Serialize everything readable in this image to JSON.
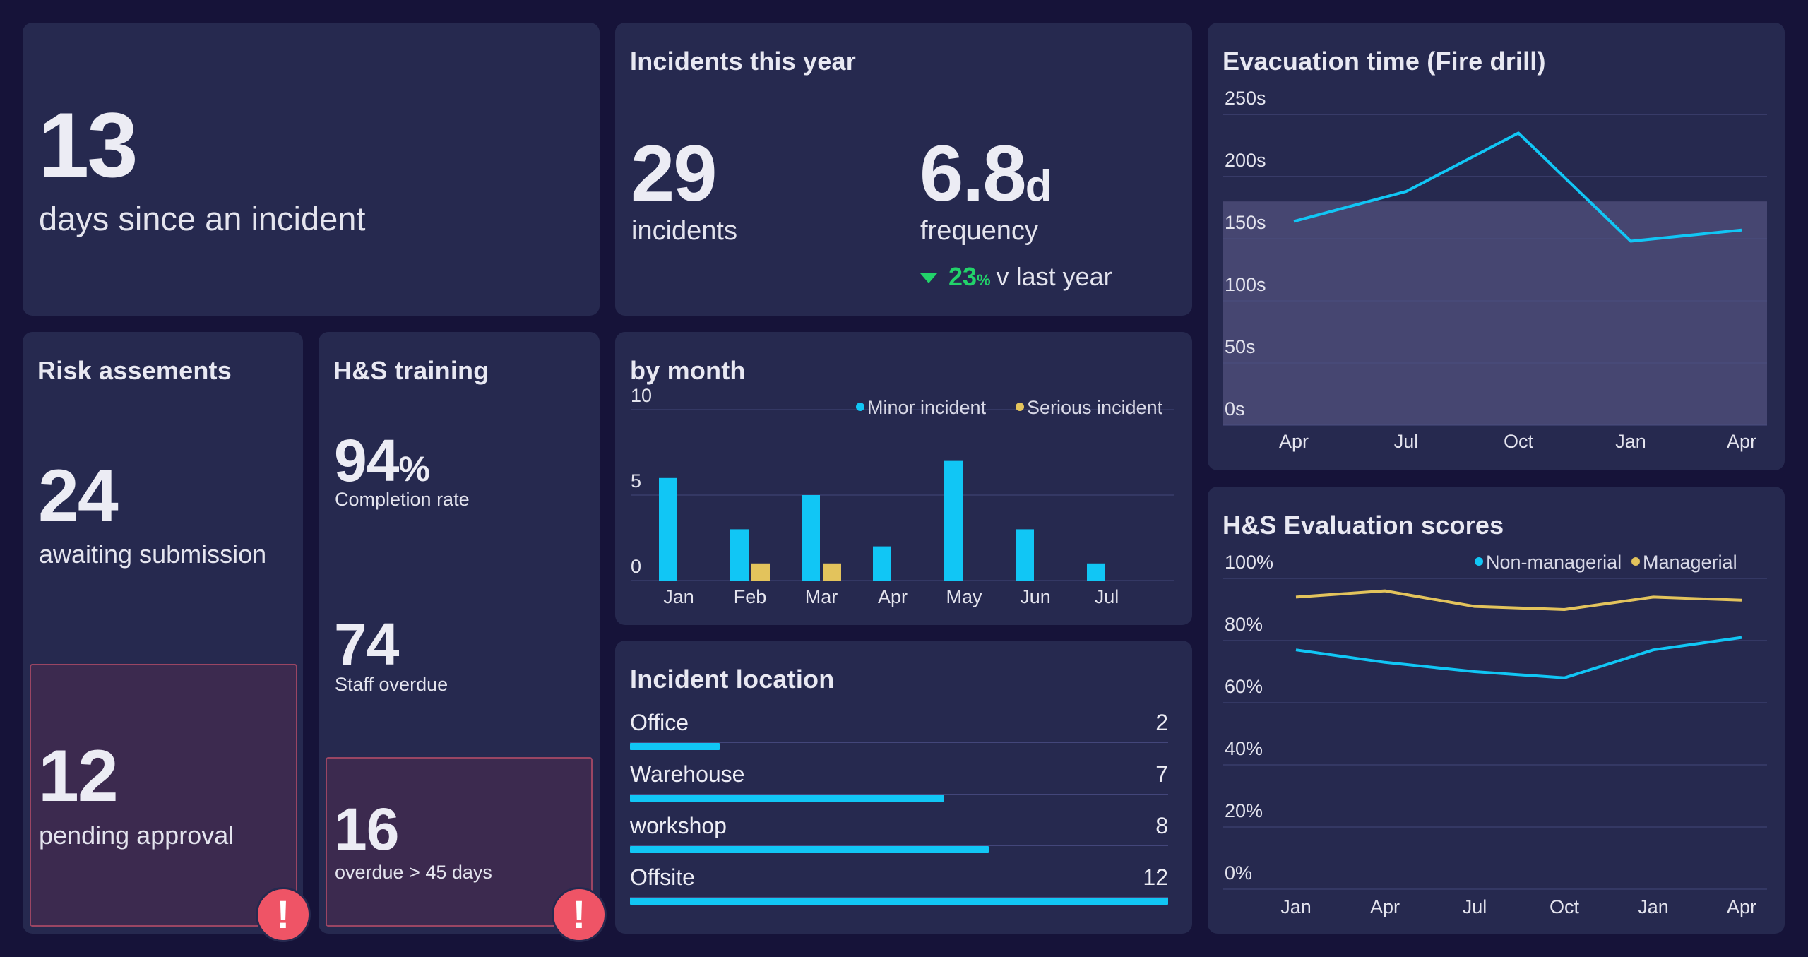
{
  "days_card": {
    "value": "13",
    "label": "days since an incident"
  },
  "incidents_card": {
    "title": "Incidents this year",
    "count": "29",
    "count_label": "incidents",
    "frequency_value": "6.8",
    "frequency_unit": "d",
    "frequency_label": "frequency",
    "change_value": "23",
    "change_unit": "%",
    "change_label": "v last year",
    "change_color": "#22d36a"
  },
  "risk_card": {
    "title": "Risk assements",
    "awaiting_value": "24",
    "awaiting_label": "awaiting submission",
    "pending_value": "12",
    "pending_label": "pending approval",
    "alert_icon": "exclamation-icon",
    "alert_symbol": "!"
  },
  "training_card": {
    "title": "H&S training",
    "completion_value": "94",
    "completion_unit": "%",
    "completion_label": "Completion rate",
    "overdue_value": "74",
    "overdue_label": "Staff overdue",
    "long_overdue_value": "16",
    "long_overdue_label": "overdue > 45 days",
    "alert_icon": "exclamation-icon",
    "alert_symbol": "!"
  },
  "month_card": {
    "title": "by month",
    "chart_data": {
      "type": "bar",
      "categories": [
        "Jan",
        "Feb",
        "Mar",
        "Apr",
        "May",
        "Jun",
        "Jul"
      ],
      "series": [
        {
          "name": "Minor incident",
          "values": [
            6,
            3,
            5,
            2,
            7,
            3,
            1
          ],
          "color": "#11c6f5"
        },
        {
          "name": "Serious incident",
          "values": [
            0,
            1,
            1,
            0,
            0,
            0,
            0
          ],
          "color": "#e3c35c"
        }
      ],
      "yticks": [
        "0",
        "5",
        "10"
      ],
      "ylim": [
        0,
        10
      ],
      "legend": "top-right"
    }
  },
  "location_card": {
    "title": "Incident location",
    "max": 12,
    "items": [
      {
        "name": "Office",
        "value": "2"
      },
      {
        "name": "Warehouse",
        "value": "7"
      },
      {
        "name": "workshop",
        "value": "8"
      },
      {
        "name": "Offsite",
        "value": "12"
      }
    ]
  },
  "evac_card": {
    "title": "Evacuation time (Fire drill)",
    "chart_data": {
      "type": "line",
      "x": [
        "Apr",
        "Jul",
        "Oct",
        "Jan",
        "Apr"
      ],
      "series": [
        {
          "values": [
            164,
            188,
            235,
            148,
            157
          ],
          "color": "#11c6f5"
        }
      ],
      "yticks": [
        "0s",
        "50s",
        "100s",
        "150s",
        "200s",
        "250s"
      ],
      "ylim": [
        0,
        250
      ],
      "target_band": [
        0,
        180
      ],
      "grid": true
    }
  },
  "scores_card": {
    "title": "H&S Evaluation scores",
    "chart_data": {
      "type": "line",
      "x": [
        "Jan",
        "Apr",
        "Jul",
        "Oct",
        "Jan",
        "Apr"
      ],
      "series": [
        {
          "name": "Non-managerial",
          "values": [
            77,
            73,
            70,
            68,
            77,
            81
          ],
          "color": "#11c6f5"
        },
        {
          "name": "Managerial",
          "values": [
            94,
            96,
            91,
            90,
            94,
            93
          ],
          "color": "#e3c35c"
        }
      ],
      "yticks": [
        "0%",
        "20%",
        "40%",
        "60%",
        "80%",
        "100%"
      ],
      "ylim": [
        0,
        100
      ],
      "legend": "top-right",
      "grid": true
    }
  }
}
